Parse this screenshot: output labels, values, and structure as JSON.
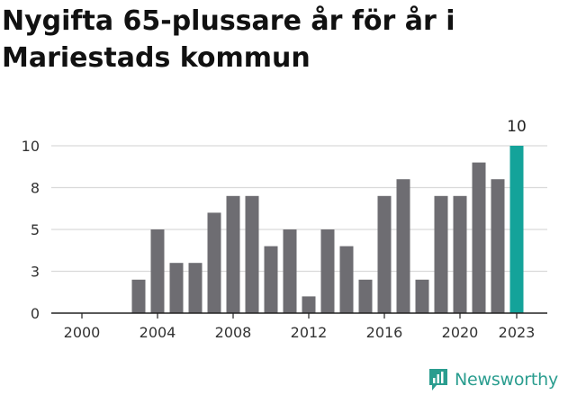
{
  "title": "Nygifta 65-plussare år för år i Mariestads kommun",
  "logo": {
    "text": "Newsworthy",
    "icon": "newsworthy-chart-bubble-icon"
  },
  "colors": {
    "bar": "#6e6d72",
    "highlight": "#14a39a",
    "grid": "#d9d9d9",
    "axis": "#222222",
    "text": "#333333",
    "brand": "#2a9d8f"
  },
  "chart_data": {
    "type": "bar",
    "title": "Nygifta 65-plussare år för år i Mariestads kommun",
    "xlabel": "",
    "ylabel": "",
    "categories": [
      2000,
      2001,
      2002,
      2003,
      2004,
      2005,
      2006,
      2007,
      2008,
      2009,
      2010,
      2011,
      2012,
      2013,
      2014,
      2015,
      2016,
      2017,
      2018,
      2019,
      2020,
      2021,
      2022,
      2023
    ],
    "values": [
      0,
      0,
      0,
      2,
      5,
      3,
      3,
      6,
      7,
      7,
      4,
      5,
      1,
      5,
      4,
      2,
      7,
      8,
      2,
      7,
      7,
      9,
      8,
      10
    ],
    "highlight_index": 23,
    "highlight_label": "10",
    "ylim": [
      0,
      10
    ],
    "yticks": [
      {
        "value": 0,
        "label": "0"
      },
      {
        "value": 2.5,
        "label": "3"
      },
      {
        "value": 5,
        "label": "5"
      },
      {
        "value": 7.5,
        "label": "8"
      },
      {
        "value": 10,
        "label": "10"
      }
    ],
    "xticks": [
      {
        "value": 2000,
        "label": "2000"
      },
      {
        "value": 2004,
        "label": "2004"
      },
      {
        "value": 2008,
        "label": "2008"
      },
      {
        "value": 2012,
        "label": "2012"
      },
      {
        "value": 2016,
        "label": "2016"
      },
      {
        "value": 2020,
        "label": "2020"
      },
      {
        "value": 2023,
        "label": "2023"
      }
    ],
    "grid": true,
    "legend": "none"
  }
}
